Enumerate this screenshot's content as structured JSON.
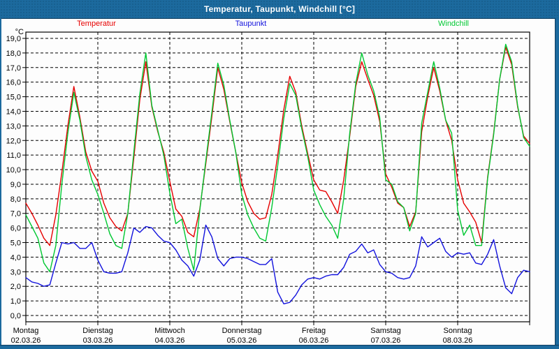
{
  "window": {
    "title": "Temperatur, Taupunkt, Windchill [°C]"
  },
  "legend": [
    {
      "label": "Temperatur",
      "color": "#e60000"
    },
    {
      "label": "Taupunkt",
      "color": "#1212dd"
    },
    {
      "label": "Windchill",
      "color": "#00c832"
    }
  ],
  "chart_data": {
    "type": "line",
    "title": "Temperatur, Taupunkt, Windchill [°C]",
    "ylabel": "°C",
    "ylim": [
      0,
      19
    ],
    "ytick_step": 1,
    "ytick_labels": [
      "0,0",
      "1,0",
      "2,0",
      "3,0",
      "4,0",
      "5,0",
      "6,0",
      "7,0",
      "8,0",
      "9,0",
      "10,0",
      "11,0",
      "12,0",
      "13,0",
      "14,0",
      "15,0",
      "16,0",
      "17,0",
      "18,0",
      "19,0"
    ],
    "grid": "dashed",
    "legend_position": "top",
    "x_total_hours": 168,
    "hours_per_point": 2,
    "x_days": [
      {
        "weekday": "Montag",
        "date": "02.03.26"
      },
      {
        "weekday": "Dienstag",
        "date": "03.03.26"
      },
      {
        "weekday": "Mittwoch",
        "date": "04.03.26"
      },
      {
        "weekday": "Donnerstag",
        "date": "05.03.26"
      },
      {
        "weekday": "Freitag",
        "date": "06.03.26"
      },
      {
        "weekday": "Samstag",
        "date": "07.03.26"
      },
      {
        "weekday": "Sonntag",
        "date": "08.03.26"
      }
    ],
    "series": [
      {
        "name": "Temperatur",
        "color": "#e60000",
        "values": [
          7.7,
          7.0,
          6.2,
          5.3,
          4.8,
          6.9,
          9.8,
          13.0,
          15.7,
          13.6,
          11.2,
          9.9,
          9.2,
          7.7,
          6.7,
          6.1,
          5.8,
          7.0,
          10.8,
          14.8,
          17.4,
          14.3,
          12.6,
          11.2,
          9.2,
          7.3,
          6.8,
          5.7,
          5.4,
          7.3,
          10.4,
          13.6,
          17.0,
          15.5,
          13.3,
          11.2,
          9.1,
          7.8,
          7.0,
          6.6,
          6.7,
          8.3,
          11.0,
          14.1,
          16.4,
          15.3,
          13.0,
          11.1,
          9.3,
          8.6,
          8.5,
          7.8,
          7.0,
          9.3,
          12.3,
          15.7,
          17.4,
          16.2,
          15.1,
          13.3,
          9.7,
          8.8,
          7.7,
          7.4,
          6.1,
          7.1,
          12.6,
          15.0,
          17.0,
          15.4,
          13.4,
          12.0,
          9.3,
          7.7,
          7.1,
          6.4,
          5.0,
          9.5,
          12.5,
          16.2,
          18.4,
          17.2,
          14.3,
          12.3,
          11.8
        ]
      },
      {
        "name": "Taupunkt",
        "color": "#1212dd",
        "values": [
          2.6,
          2.3,
          2.2,
          2.0,
          2.1,
          3.6,
          5.0,
          4.9,
          5.0,
          4.6,
          4.6,
          5.0,
          3.8,
          3.0,
          2.9,
          2.9,
          3.0,
          4.3,
          6.0,
          5.7,
          6.1,
          6.0,
          5.5,
          5.1,
          5.0,
          4.5,
          3.8,
          3.4,
          2.7,
          3.8,
          6.2,
          5.4,
          3.9,
          3.4,
          3.9,
          4.0,
          4.0,
          3.9,
          3.7,
          3.5,
          3.5,
          3.9,
          1.6,
          0.8,
          0.9,
          1.4,
          2.1,
          2.5,
          2.6,
          2.5,
          2.7,
          2.8,
          2.8,
          3.3,
          4.2,
          4.4,
          4.9,
          4.3,
          4.5,
          3.5,
          3.0,
          2.9,
          2.6,
          2.5,
          2.6,
          3.4,
          5.4,
          4.7,
          5.0,
          5.3,
          4.4,
          4.0,
          4.3,
          4.2,
          4.3,
          3.6,
          3.5,
          4.2,
          5.2,
          3.4,
          1.9,
          1.5,
          2.6,
          3.1,
          3.0
        ]
      },
      {
        "name": "Windchill",
        "color": "#00c832",
        "values": [
          6.9,
          6.1,
          5.3,
          3.6,
          3.0,
          4.8,
          9.0,
          12.5,
          15.3,
          13.4,
          10.9,
          9.3,
          8.3,
          7.0,
          5.6,
          4.8,
          4.6,
          7.0,
          11.2,
          15.2,
          18.0,
          14.4,
          12.7,
          11.0,
          8.4,
          6.3,
          6.6,
          4.6,
          3.1,
          7.2,
          10.6,
          13.9,
          17.3,
          15.8,
          13.4,
          11.2,
          8.3,
          6.9,
          6.0,
          5.3,
          5.1,
          7.4,
          10.3,
          13.5,
          15.9,
          15.1,
          12.8,
          10.9,
          8.6,
          7.6,
          6.8,
          6.2,
          5.3,
          8.0,
          12.5,
          15.9,
          18.0,
          16.5,
          15.4,
          13.6,
          9.3,
          9.0,
          7.8,
          7.4,
          5.8,
          7.0,
          13.2,
          15.3,
          17.4,
          15.6,
          13.4,
          12.5,
          7.2,
          5.5,
          6.2,
          4.8,
          4.8,
          9.4,
          12.4,
          16.2,
          18.6,
          17.4,
          14.4,
          12.2,
          11.6
        ]
      }
    ]
  }
}
